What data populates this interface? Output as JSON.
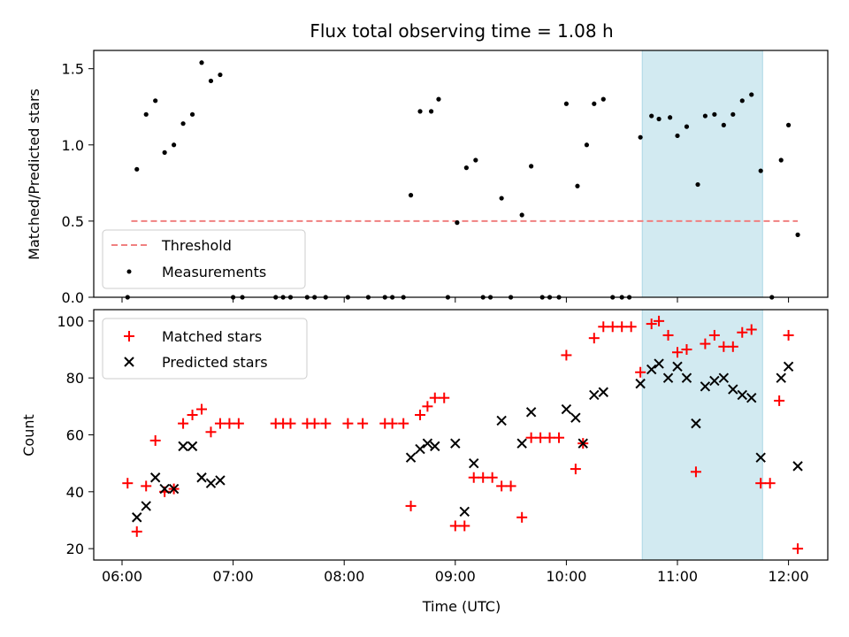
{
  "chart_data": [
    {
      "type": "scatter",
      "title": "Flux total observing time = 1.08 h",
      "xlabel": "",
      "ylabel": "Matched/Predicted stars",
      "ylim": [
        0,
        1.62
      ],
      "yticks": [
        "0.0",
        "0.5",
        "1.0",
        "1.5"
      ],
      "x_axis": "time",
      "highlight_span": {
        "start": "10:41",
        "end": "11:46",
        "color": "#add8e6"
      },
      "legend": {
        "position": "lower-left",
        "entries": [
          "Threshold",
          "Measurements"
        ]
      },
      "series": [
        {
          "name": "Threshold",
          "kind": "line",
          "color": "#f08080",
          "points": [
            {
              "t": "06:05",
              "v": 0.5
            },
            {
              "t": "12:05",
              "v": 0.5
            }
          ]
        },
        {
          "name": "Measurements",
          "kind": "dot",
          "color": "#000000",
          "points": [
            {
              "t": "06:03",
              "v": 0.0
            },
            {
              "t": "06:08",
              "v": 0.84
            },
            {
              "t": "06:13",
              "v": 1.2
            },
            {
              "t": "06:18",
              "v": 1.29
            },
            {
              "t": "06:23",
              "v": 0.95
            },
            {
              "t": "06:28",
              "v": 1.0
            },
            {
              "t": "06:33",
              "v": 1.14
            },
            {
              "t": "06:38",
              "v": 1.2
            },
            {
              "t": "06:43",
              "v": 1.54
            },
            {
              "t": "06:48",
              "v": 1.42
            },
            {
              "t": "06:53",
              "v": 1.46
            },
            {
              "t": "07:00",
              "v": 0.0
            },
            {
              "t": "07:05",
              "v": 0.0
            },
            {
              "t": "07:23",
              "v": 0.0
            },
            {
              "t": "07:27",
              "v": 0.0
            },
            {
              "t": "07:31",
              "v": 0.0
            },
            {
              "t": "07:40",
              "v": 0.0
            },
            {
              "t": "07:44",
              "v": 0.0
            },
            {
              "t": "07:50",
              "v": 0.0
            },
            {
              "t": "08:02",
              "v": 0.0
            },
            {
              "t": "08:13",
              "v": 0.0
            },
            {
              "t": "08:22",
              "v": 0.0
            },
            {
              "t": "08:26",
              "v": 0.0
            },
            {
              "t": "08:32",
              "v": 0.0
            },
            {
              "t": "08:36",
              "v": 0.67
            },
            {
              "t": "08:41",
              "v": 1.22
            },
            {
              "t": "08:47",
              "v": 1.22
            },
            {
              "t": "08:51",
              "v": 1.3
            },
            {
              "t": "08:56",
              "v": 0.0
            },
            {
              "t": "09:01",
              "v": 0.49
            },
            {
              "t": "09:06",
              "v": 0.85
            },
            {
              "t": "09:11",
              "v": 0.9
            },
            {
              "t": "09:15",
              "v": 0.0
            },
            {
              "t": "09:19",
              "v": 0.0
            },
            {
              "t": "09:25",
              "v": 0.65
            },
            {
              "t": "09:30",
              "v": 0.0
            },
            {
              "t": "09:36",
              "v": 0.54
            },
            {
              "t": "09:41",
              "v": 0.86
            },
            {
              "t": "09:47",
              "v": 0.0
            },
            {
              "t": "09:51",
              "v": 0.0
            },
            {
              "t": "09:56",
              "v": 0.0
            },
            {
              "t": "10:00",
              "v": 1.27
            },
            {
              "t": "10:06",
              "v": 0.73
            },
            {
              "t": "10:11",
              "v": 1.0
            },
            {
              "t": "10:15",
              "v": 1.27
            },
            {
              "t": "10:20",
              "v": 1.3
            },
            {
              "t": "10:25",
              "v": 0.0
            },
            {
              "t": "10:30",
              "v": 0.0
            },
            {
              "t": "10:34",
              "v": 0.0
            },
            {
              "t": "10:40",
              "v": 1.05
            },
            {
              "t": "10:46",
              "v": 1.19
            },
            {
              "t": "10:50",
              "v": 1.17
            },
            {
              "t": "10:56",
              "v": 1.18
            },
            {
              "t": "11:00",
              "v": 1.06
            },
            {
              "t": "11:05",
              "v": 1.12
            },
            {
              "t": "11:11",
              "v": 0.74
            },
            {
              "t": "11:15",
              "v": 1.19
            },
            {
              "t": "11:20",
              "v": 1.2
            },
            {
              "t": "11:25",
              "v": 1.13
            },
            {
              "t": "11:30",
              "v": 1.2
            },
            {
              "t": "11:35",
              "v": 1.29
            },
            {
              "t": "11:40",
              "v": 1.33
            },
            {
              "t": "11:45",
              "v": 0.83
            },
            {
              "t": "11:51",
              "v": 0.0
            },
            {
              "t": "11:56",
              "v": 0.9
            },
            {
              "t": "12:00",
              "v": 1.13
            },
            {
              "t": "12:05",
              "v": 0.41
            }
          ]
        }
      ]
    },
    {
      "type": "scatter",
      "title": "",
      "xlabel": "Time (UTC)",
      "ylabel": "Count",
      "ylim": [
        16,
        104
      ],
      "yticks": [
        "20",
        "40",
        "60",
        "80",
        "100"
      ],
      "xticks": [
        "06:00",
        "07:00",
        "08:00",
        "09:00",
        "10:00",
        "11:00",
        "12:00"
      ],
      "x_axis": "time",
      "highlight_span": {
        "start": "10:41",
        "end": "11:46",
        "color": "#add8e6"
      },
      "legend": {
        "position": "top-left",
        "entries": [
          "Matched stars",
          "Predicted stars"
        ]
      },
      "series": [
        {
          "name": "Matched stars",
          "kind": "plus",
          "color": "#ff0000",
          "points": [
            {
              "t": "06:03",
              "v": 43
            },
            {
              "t": "06:08",
              "v": 26
            },
            {
              "t": "06:13",
              "v": 42
            },
            {
              "t": "06:18",
              "v": 58
            },
            {
              "t": "06:23",
              "v": 40
            },
            {
              "t": "06:28",
              "v": 41
            },
            {
              "t": "06:33",
              "v": 64
            },
            {
              "t": "06:38",
              "v": 67
            },
            {
              "t": "06:43",
              "v": 69
            },
            {
              "t": "06:48",
              "v": 61
            },
            {
              "t": "06:53",
              "v": 64
            },
            {
              "t": "06:58",
              "v": 64
            },
            {
              "t": "07:03",
              "v": 64
            },
            {
              "t": "07:23",
              "v": 64
            },
            {
              "t": "07:27",
              "v": 64
            },
            {
              "t": "07:31",
              "v": 64
            },
            {
              "t": "07:40",
              "v": 64
            },
            {
              "t": "07:44",
              "v": 64
            },
            {
              "t": "07:50",
              "v": 64
            },
            {
              "t": "08:02",
              "v": 64
            },
            {
              "t": "08:10",
              "v": 64
            },
            {
              "t": "08:22",
              "v": 64
            },
            {
              "t": "08:26",
              "v": 64
            },
            {
              "t": "08:32",
              "v": 64
            },
            {
              "t": "08:36",
              "v": 35
            },
            {
              "t": "08:41",
              "v": 67
            },
            {
              "t": "08:45",
              "v": 70
            },
            {
              "t": "08:49",
              "v": 73
            },
            {
              "t": "08:54",
              "v": 73
            },
            {
              "t": "09:00",
              "v": 28
            },
            {
              "t": "09:05",
              "v": 28
            },
            {
              "t": "09:10",
              "v": 45
            },
            {
              "t": "09:15",
              "v": 45
            },
            {
              "t": "09:20",
              "v": 45
            },
            {
              "t": "09:25",
              "v": 42
            },
            {
              "t": "09:30",
              "v": 42
            },
            {
              "t": "09:36",
              "v": 31
            },
            {
              "t": "09:41",
              "v": 59
            },
            {
              "t": "09:46",
              "v": 59
            },
            {
              "t": "09:51",
              "v": 59
            },
            {
              "t": "09:56",
              "v": 59
            },
            {
              "t": "10:00",
              "v": 88
            },
            {
              "t": "10:05",
              "v": 48
            },
            {
              "t": "10:09",
              "v": 57
            },
            {
              "t": "10:15",
              "v": 94
            },
            {
              "t": "10:20",
              "v": 98
            },
            {
              "t": "10:25",
              "v": 98
            },
            {
              "t": "10:30",
              "v": 98
            },
            {
              "t": "10:35",
              "v": 98
            },
            {
              "t": "10:40",
              "v": 82
            },
            {
              "t": "10:46",
              "v": 99
            },
            {
              "t": "10:50",
              "v": 100
            },
            {
              "t": "10:55",
              "v": 95
            },
            {
              "t": "11:00",
              "v": 89
            },
            {
              "t": "11:05",
              "v": 90
            },
            {
              "t": "11:10",
              "v": 47
            },
            {
              "t": "11:15",
              "v": 92
            },
            {
              "t": "11:20",
              "v": 95
            },
            {
              "t": "11:25",
              "v": 91
            },
            {
              "t": "11:30",
              "v": 91
            },
            {
              "t": "11:35",
              "v": 96
            },
            {
              "t": "11:40",
              "v": 97
            },
            {
              "t": "11:45",
              "v": 43
            },
            {
              "t": "11:50",
              "v": 43
            },
            {
              "t": "11:55",
              "v": 72
            },
            {
              "t": "12:00",
              "v": 95
            },
            {
              "t": "12:05",
              "v": 20
            }
          ]
        },
        {
          "name": "Predicted stars",
          "kind": "cross",
          "color": "#000000",
          "points": [
            {
              "t": "06:08",
              "v": 31
            },
            {
              "t": "06:13",
              "v": 35
            },
            {
              "t": "06:18",
              "v": 45
            },
            {
              "t": "06:23",
              "v": 41
            },
            {
              "t": "06:28",
              "v": 41
            },
            {
              "t": "06:33",
              "v": 56
            },
            {
              "t": "06:38",
              "v": 56
            },
            {
              "t": "06:43",
              "v": 45
            },
            {
              "t": "06:48",
              "v": 43
            },
            {
              "t": "06:53",
              "v": 44
            },
            {
              "t": "08:36",
              "v": 52
            },
            {
              "t": "08:41",
              "v": 55
            },
            {
              "t": "08:45",
              "v": 57
            },
            {
              "t": "08:49",
              "v": 56
            },
            {
              "t": "09:00",
              "v": 57
            },
            {
              "t": "09:05",
              "v": 33
            },
            {
              "t": "09:10",
              "v": 50
            },
            {
              "t": "09:25",
              "v": 65
            },
            {
              "t": "09:36",
              "v": 57
            },
            {
              "t": "09:41",
              "v": 68
            },
            {
              "t": "10:00",
              "v": 69
            },
            {
              "t": "10:05",
              "v": 66
            },
            {
              "t": "10:09",
              "v": 57
            },
            {
              "t": "10:15",
              "v": 74
            },
            {
              "t": "10:20",
              "v": 75
            },
            {
              "t": "10:40",
              "v": 78
            },
            {
              "t": "10:46",
              "v": 83
            },
            {
              "t": "10:50",
              "v": 85
            },
            {
              "t": "10:55",
              "v": 80
            },
            {
              "t": "11:00",
              "v": 84
            },
            {
              "t": "11:05",
              "v": 80
            },
            {
              "t": "11:10",
              "v": 64
            },
            {
              "t": "11:15",
              "v": 77
            },
            {
              "t": "11:20",
              "v": 79
            },
            {
              "t": "11:25",
              "v": 80
            },
            {
              "t": "11:30",
              "v": 76
            },
            {
              "t": "11:35",
              "v": 74
            },
            {
              "t": "11:40",
              "v": 73
            },
            {
              "t": "11:45",
              "v": 52
            },
            {
              "t": "11:56",
              "v": 80
            },
            {
              "t": "12:00",
              "v": 84
            },
            {
              "t": "12:05",
              "v": 49
            }
          ]
        }
      ]
    }
  ]
}
